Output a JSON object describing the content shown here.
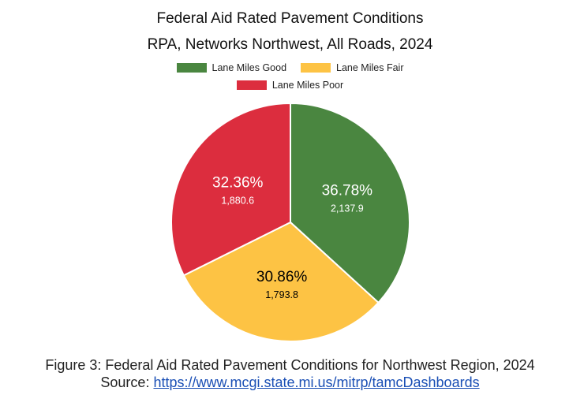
{
  "chart_data": {
    "type": "pie",
    "title": "Federal Aid Rated Pavement Conditions",
    "subtitle": "RPA, Networks Northwest, All Roads, 2024",
    "legend_placement": "top",
    "slices": [
      {
        "name": "Lane Miles Good",
        "value": 2137.9,
        "value_label": "2,137.9",
        "percent_label": "36.78%",
        "color": "#4a8640",
        "label_color": "#ffffff"
      },
      {
        "name": "Lane Miles Fair",
        "value": 1793.8,
        "value_label": "1,793.8",
        "percent_label": "30.86%",
        "color": "#fdc344",
        "label_color": "#000000"
      },
      {
        "name": "Lane Miles Poor",
        "value": 1880.6,
        "value_label": "1,880.6",
        "percent_label": "32.36%",
        "color": "#dc2d3e",
        "label_color": "#ffffff"
      }
    ]
  },
  "caption": {
    "figure_text": "Figure 3: Federal Aid Rated Pavement Conditions for Northwest Region, 2024",
    "source_prefix": "Source: ",
    "source_link": "https://www.mcgi.state.mi.us/mitrp/tamcDashboards"
  }
}
